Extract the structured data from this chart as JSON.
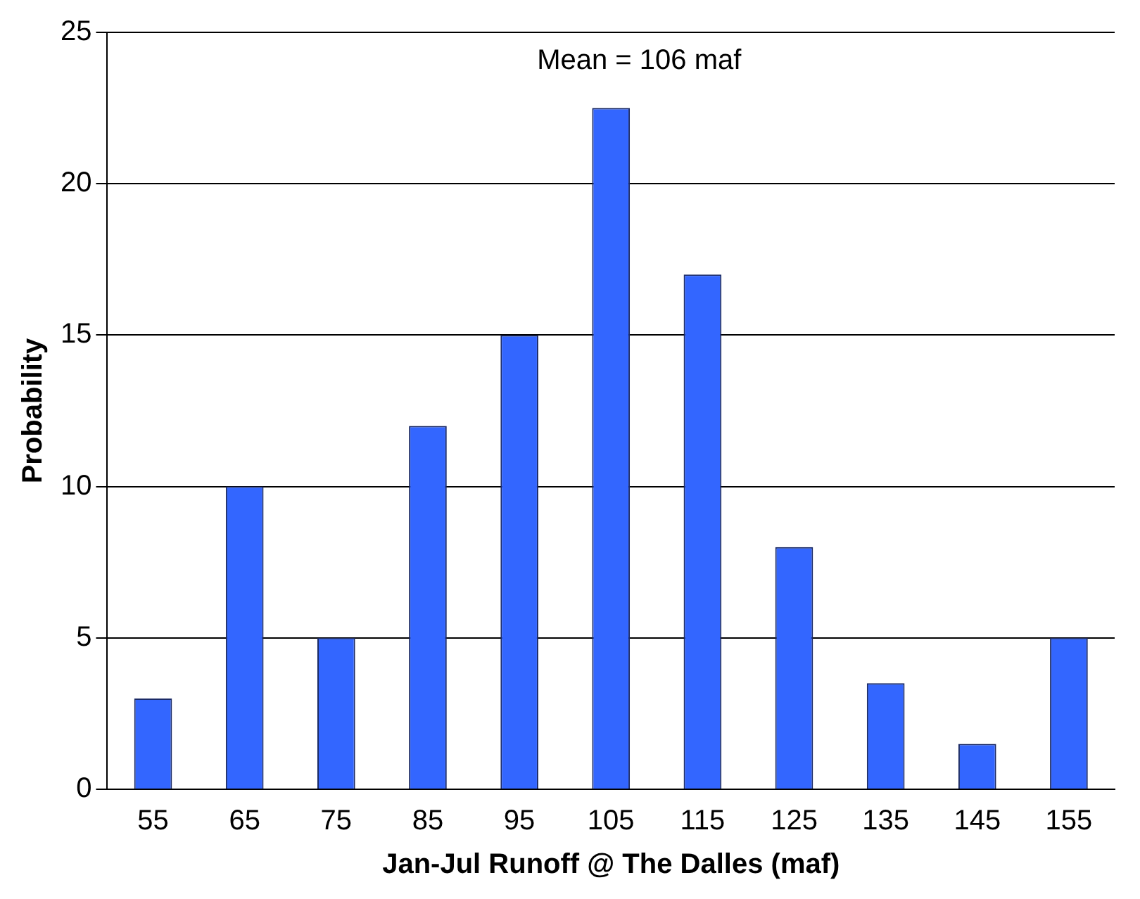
{
  "chart_data": {
    "type": "bar",
    "xlabel": "Jan-Jul Runoff @ The Dalles (maf)",
    "ylabel": "Probability",
    "categories": [
      "55",
      "65",
      "75",
      "85",
      "95",
      "105",
      "115",
      "125",
      "135",
      "145",
      "155"
    ],
    "values": [
      3,
      10,
      5,
      12,
      15,
      22.5,
      17,
      8,
      3.5,
      1.5,
      5
    ],
    "color": "#3366ff",
    "ylim": [
      0,
      25
    ],
    "yticks": [
      0,
      5,
      10,
      15,
      20,
      25
    ],
    "grid": "y",
    "legend": false,
    "annotations": [
      "Mean = 106 maf"
    ]
  }
}
